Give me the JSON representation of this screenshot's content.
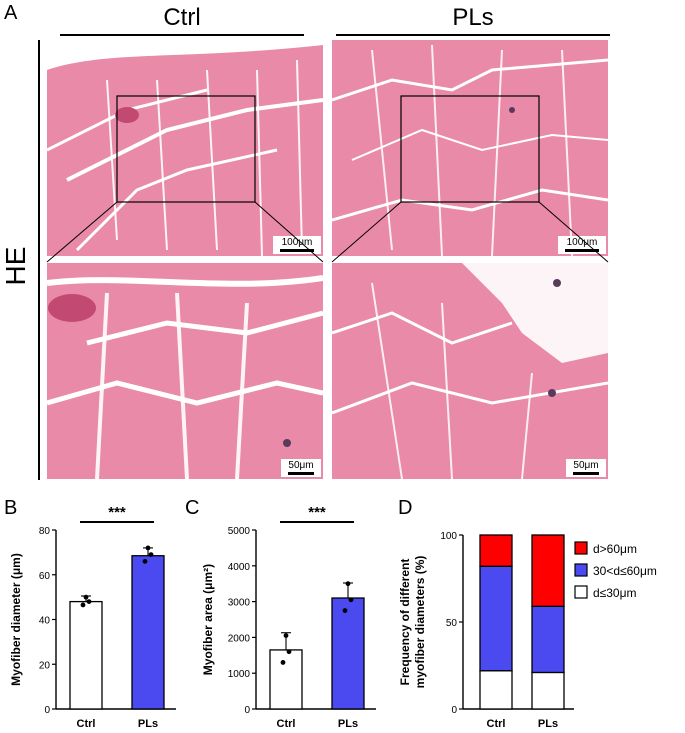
{
  "figure": {
    "panel_labels": {
      "A": "A",
      "B": "B",
      "C": "C",
      "D": "D"
    },
    "stain_label": "HE",
    "groups": [
      "Ctrl",
      "PLs"
    ],
    "scale_bars": {
      "low_mag": "100μm",
      "high_mag": "50μm"
    }
  },
  "colors": {
    "tissue_pink": "#e78aa6",
    "bar_ctrl": "#ffffff",
    "bar_pls": "#4b4af0",
    "seg_high": "#ff0000",
    "seg_mid": "#4b4af0",
    "seg_low": "#ffffff"
  },
  "chart_data": [
    {
      "type": "bar",
      "panel": "B",
      "categories": [
        "Ctrl",
        "PLs"
      ],
      "values": [
        48,
        68.5
      ],
      "errors": [
        2.5,
        3.5
      ],
      "points": [
        [
          46.5,
          48,
          50
        ],
        [
          66,
          69,
          72
        ]
      ],
      "significance": "***",
      "ylabel": "Myofiber diameter (μm)",
      "ylim": [
        0,
        80
      ],
      "yticks": [
        0,
        20,
        40,
        60,
        80
      ]
    },
    {
      "type": "bar",
      "panel": "C",
      "categories": [
        "Ctrl",
        "PLs"
      ],
      "values": [
        1650,
        3100
      ],
      "errors": [
        480,
        420
      ],
      "points": [
        [
          1300,
          1600,
          2050
        ],
        [
          2750,
          3050,
          3500
        ]
      ],
      "significance": "***",
      "ylabel": "Myofiber area (μm²)",
      "ylim": [
        0,
        5000
      ],
      "yticks": [
        0,
        1000,
        2000,
        3000,
        4000,
        5000
      ]
    },
    {
      "type": "bar",
      "panel": "D",
      "stacked": true,
      "categories": [
        "Ctrl",
        "PLs"
      ],
      "series": [
        {
          "name": "d≤30μm",
          "values": [
            22,
            21
          ]
        },
        {
          "name": "30<d≤60μm",
          "values": [
            60,
            38
          ]
        },
        {
          "name": "d>60μm",
          "values": [
            18,
            41
          ]
        }
      ],
      "ylabel_lines": [
        "Frequency of different",
        "myofiber diameters (%)"
      ],
      "ylim": [
        0,
        100
      ],
      "yticks": [
        0,
        50,
        100
      ],
      "legend_order": [
        "d>60μm",
        "30<d≤60μm",
        "d≤30μm"
      ],
      "legend_position": "right"
    }
  ]
}
